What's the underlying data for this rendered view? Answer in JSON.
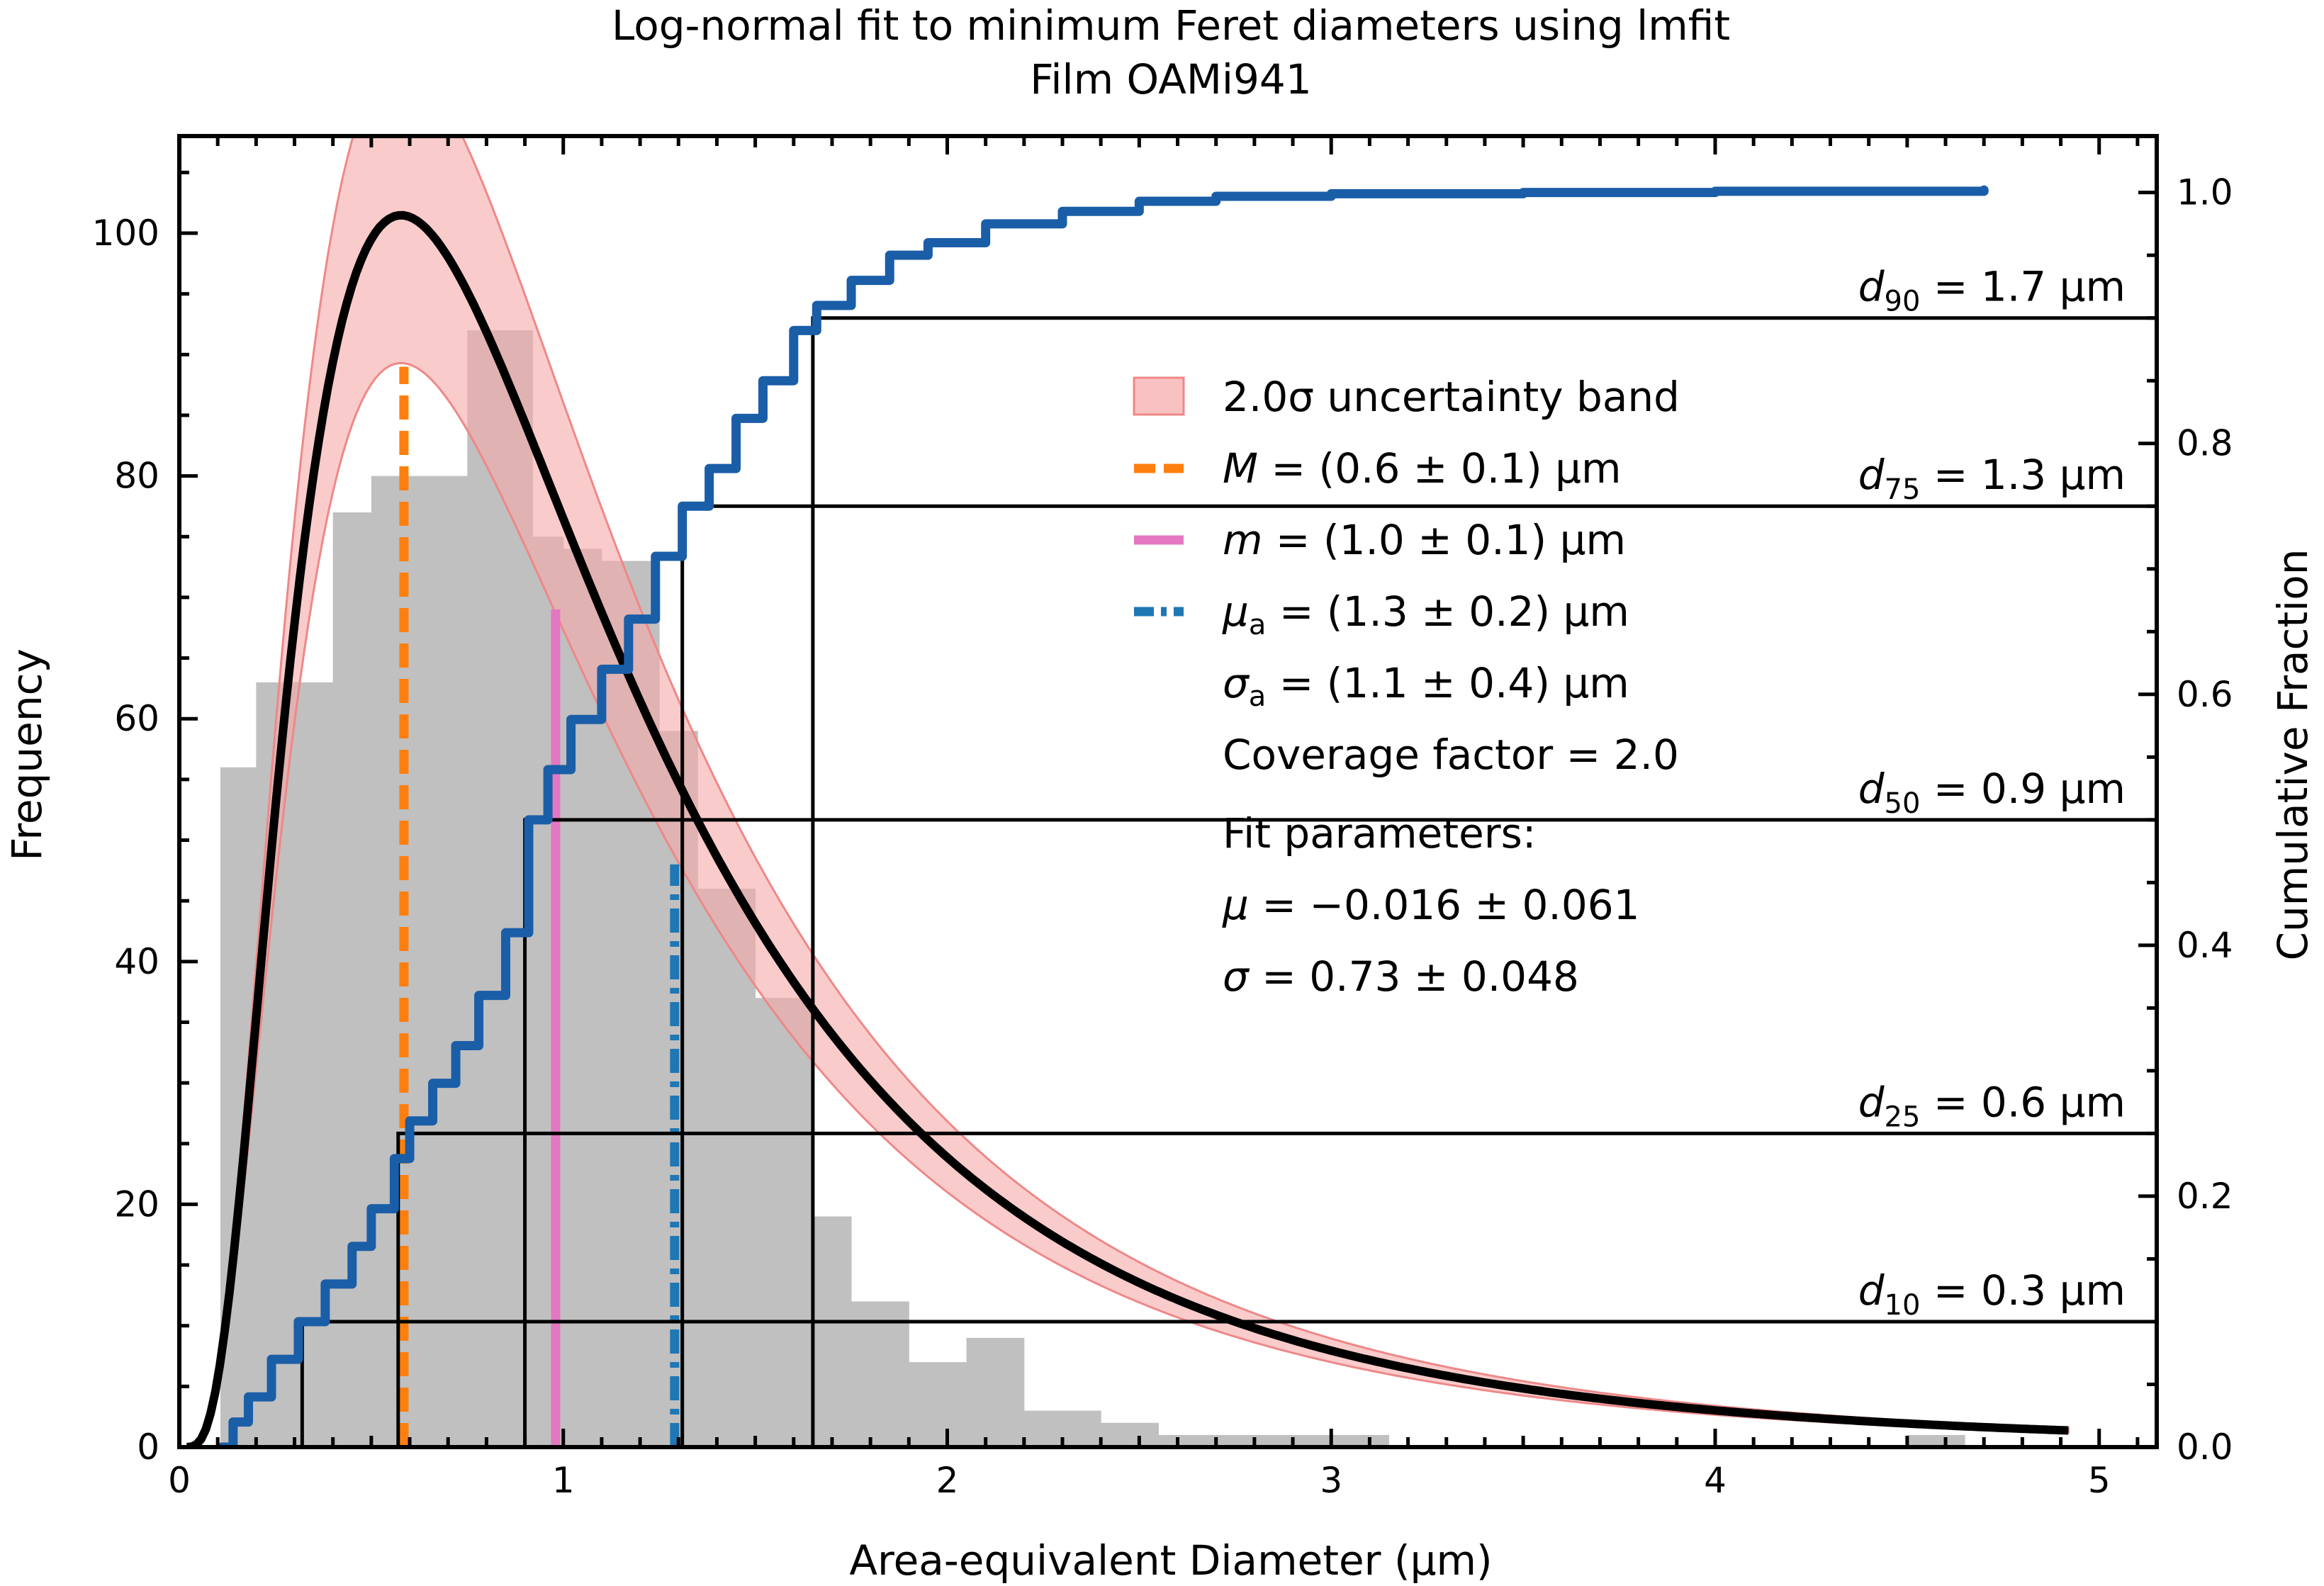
{
  "chart_data": {
    "type": "histogram",
    "title": "Log-normal fit to minimum Feret diameters using lmfit",
    "subtitle": "Film OAMi941",
    "xlabel": "Area-equivalent Diameter (μm)",
    "ylabel_left": "Frequency",
    "ylabel_right": "Cumulative Fraction",
    "xlim": [
      0,
      5.15
    ],
    "ylim_left": [
      0,
      108
    ],
    "ylim_right": [
      0,
      1.045
    ],
    "x_ticks": [
      0,
      1,
      2,
      3,
      4,
      5
    ],
    "y_ticks_left": [
      0,
      20,
      40,
      60,
      80,
      100
    ],
    "y_ticks_right": [
      0.0,
      0.2,
      0.4,
      0.6,
      0.8,
      1.0
    ],
    "x_tick_labels": [
      "0",
      "1",
      "2",
      "3",
      "4",
      "5"
    ],
    "y_tick_labels_left": [
      "0",
      "20",
      "40",
      "60",
      "80",
      "100"
    ],
    "y_tick_labels_right": [
      "0.0",
      "0.2",
      "0.4",
      "0.6",
      "0.8",
      "1.0"
    ],
    "grid": false,
    "colors": {
      "histogram": "#c0c0c0",
      "fit": "#000000",
      "band": "#f7a8a8",
      "band_edge": "#ee8888",
      "mode": "#ff7f0e",
      "median": "#e377c2",
      "mean": "#1f77b4",
      "cdf": "#1a5ea8"
    },
    "histogram": {
      "bin_edges": [
        0.107,
        0.2,
        0.4,
        0.5,
        0.6,
        0.75,
        0.92,
        1.0,
        1.1,
        1.25,
        1.35,
        1.5,
        1.65,
        1.75,
        1.9,
        2.05,
        2.2,
        2.4,
        2.55,
        2.7,
        2.85,
        3.0,
        3.15,
        3.3,
        3.45,
        3.6,
        3.75,
        3.9,
        4.05,
        4.2,
        4.35,
        4.5,
        4.65,
        4.8
      ],
      "counts": [
        56,
        63,
        77,
        80,
        80,
        92,
        75,
        74,
        73,
        59,
        46,
        37,
        19,
        12,
        7,
        9,
        3,
        2,
        1,
        1,
        1,
        1,
        0,
        0,
        0,
        0,
        0,
        0,
        0,
        0,
        0,
        1,
        0
      ]
    },
    "fit": {
      "mu": -0.016,
      "sigma": 0.73,
      "scale": 140,
      "band_scale_low": 0.88,
      "band_scale_high": 1.125,
      "x_min": 0.02,
      "x_max": 4.92
    },
    "cdf_points": [
      [
        0.11,
        0.0
      ],
      [
        0.14,
        0.02
      ],
      [
        0.18,
        0.04
      ],
      [
        0.24,
        0.07
      ],
      [
        0.31,
        0.1
      ],
      [
        0.38,
        0.13
      ],
      [
        0.45,
        0.16
      ],
      [
        0.5,
        0.19
      ],
      [
        0.56,
        0.23
      ],
      [
        0.6,
        0.26
      ],
      [
        0.66,
        0.29
      ],
      [
        0.72,
        0.32
      ],
      [
        0.78,
        0.36
      ],
      [
        0.85,
        0.41
      ],
      [
        0.91,
        0.5
      ],
      [
        0.96,
        0.54
      ],
      [
        1.02,
        0.58
      ],
      [
        1.1,
        0.62
      ],
      [
        1.17,
        0.66
      ],
      [
        1.24,
        0.71
      ],
      [
        1.31,
        0.75
      ],
      [
        1.38,
        0.78
      ],
      [
        1.45,
        0.82
      ],
      [
        1.52,
        0.85
      ],
      [
        1.6,
        0.89
      ],
      [
        1.66,
        0.91
      ],
      [
        1.75,
        0.93
      ],
      [
        1.85,
        0.95
      ],
      [
        1.95,
        0.96
      ],
      [
        2.1,
        0.975
      ],
      [
        2.3,
        0.985
      ],
      [
        2.5,
        0.993
      ],
      [
        2.7,
        0.997
      ],
      [
        3.0,
        0.999
      ],
      [
        3.5,
        1.0
      ],
      [
        4.0,
        1.001
      ],
      [
        4.7,
        1.002
      ]
    ],
    "vertical_lines": [
      {
        "name": "mode",
        "x": 0.585,
        "y_top": 89,
        "style": "dashed"
      },
      {
        "name": "median",
        "x": 0.98,
        "y_top": 69,
        "style": "solid"
      },
      {
        "name": "mean",
        "x": 1.29,
        "y_top": 48,
        "style": "dashdot"
      }
    ],
    "percentiles": [
      {
        "x": 0.32,
        "fraction": 0.1,
        "label_base": "d",
        "label_sub": "10",
        "label_value": "= 0.3 μm"
      },
      {
        "x": 0.57,
        "fraction": 0.25,
        "label_base": "d",
        "label_sub": "25",
        "label_value": "= 0.6 μm"
      },
      {
        "x": 0.9,
        "fraction": 0.5,
        "label_base": "d",
        "label_sub": "50",
        "label_value": "= 0.9 μm"
      },
      {
        "x": 1.31,
        "fraction": 0.75,
        "label_base": "d",
        "label_sub": "75",
        "label_value": "= 1.3 μm"
      },
      {
        "x": 1.65,
        "fraction": 0.9,
        "label_base": "d",
        "label_sub": "90",
        "label_value": "= 1.7 μm"
      }
    ],
    "legend": {
      "placement": "center",
      "entries": [
        {
          "kind": "patch",
          "text": "2.0σ uncertainty band"
        },
        {
          "kind": "mode",
          "text": "M = (0.6 ± 0.1) μm"
        },
        {
          "kind": "median",
          "text": "m = (1.0 ± 0.1) μm"
        },
        {
          "kind": "mean",
          "text": "μa = (1.3 ± 0.2) μm"
        }
      ],
      "extra_lines": [
        "σa = (1.1 ± 0.4) μm",
        "Coverage factor = 2.0"
      ]
    },
    "fit_parameters": {
      "heading": "Fit parameters:",
      "mu_text": "μ = −0.016 ± 0.061",
      "sigma_text": "σ = 0.73 ± 0.048"
    }
  }
}
